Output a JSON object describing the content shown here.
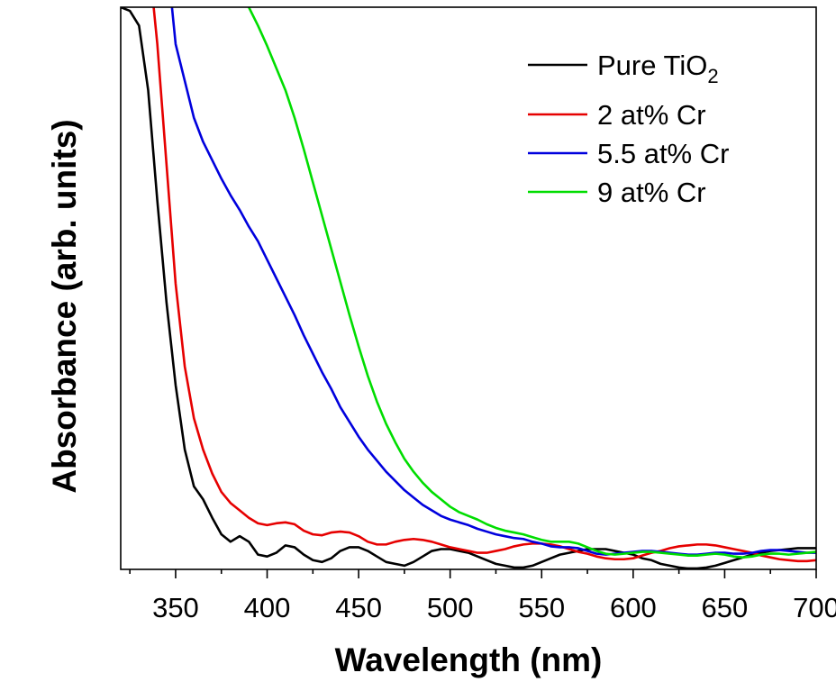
{
  "chart_data": {
    "type": "line",
    "xlabel": "Wavelength (nm)",
    "ylabel": "Absorbance (arb. units)",
    "xlim": [
      320,
      700
    ],
    "ylim": [
      0,
      3.05
    ],
    "x_ticks": [
      350,
      400,
      450,
      500,
      550,
      600,
      650,
      700
    ],
    "x_tick_labels": [
      "350",
      "400",
      "450",
      "500",
      "550",
      "600",
      "650",
      "700"
    ],
    "y_ticks_shown": false,
    "grid": false,
    "legend_position": "top-right",
    "series": [
      {
        "name": "Pure TiO2",
        "legend_main": "Pure TiO",
        "legend_sub": "2",
        "color": "#000000",
        "points": [
          [
            320,
            3.05
          ],
          [
            325,
            3.03
          ],
          [
            330,
            2.95
          ],
          [
            335,
            2.6
          ],
          [
            340,
            2.0
          ],
          [
            345,
            1.45
          ],
          [
            350,
            1.0
          ],
          [
            355,
            0.65
          ],
          [
            360,
            0.45
          ],
          [
            365,
            0.38
          ],
          [
            370,
            0.28
          ],
          [
            375,
            0.19
          ],
          [
            380,
            0.15
          ],
          [
            385,
            0.18
          ],
          [
            390,
            0.15
          ],
          [
            395,
            0.08
          ],
          [
            400,
            0.07
          ],
          [
            405,
            0.09
          ],
          [
            410,
            0.13
          ],
          [
            415,
            0.12
          ],
          [
            420,
            0.08
          ],
          [
            425,
            0.05
          ],
          [
            430,
            0.04
          ],
          [
            435,
            0.06
          ],
          [
            440,
            0.1
          ],
          [
            445,
            0.12
          ],
          [
            450,
            0.12
          ],
          [
            455,
            0.1
          ],
          [
            460,
            0.07
          ],
          [
            465,
            0.04
          ],
          [
            470,
            0.03
          ],
          [
            475,
            0.02
          ],
          [
            480,
            0.04
          ],
          [
            485,
            0.07
          ],
          [
            490,
            0.1
          ],
          [
            495,
            0.11
          ],
          [
            500,
            0.11
          ],
          [
            505,
            0.1
          ],
          [
            510,
            0.09
          ],
          [
            515,
            0.07
          ],
          [
            520,
            0.05
          ],
          [
            525,
            0.03
          ],
          [
            530,
            0.02
          ],
          [
            535,
            0.01
          ],
          [
            540,
            0.01
          ],
          [
            545,
            0.02
          ],
          [
            550,
            0.04
          ],
          [
            555,
            0.06
          ],
          [
            560,
            0.08
          ],
          [
            565,
            0.09
          ],
          [
            570,
            0.1
          ],
          [
            575,
            0.11
          ],
          [
            580,
            0.11
          ],
          [
            585,
            0.11
          ],
          [
            590,
            0.1
          ],
          [
            595,
            0.09
          ],
          [
            600,
            0.08
          ],
          [
            605,
            0.06
          ],
          [
            610,
            0.05
          ],
          [
            615,
            0.03
          ],
          [
            620,
            0.02
          ],
          [
            625,
            0.01
          ],
          [
            630,
            0.005
          ],
          [
            635,
            0.005
          ],
          [
            640,
            0.01
          ],
          [
            645,
            0.02
          ],
          [
            650,
            0.035
          ],
          [
            655,
            0.05
          ],
          [
            660,
            0.065
          ],
          [
            665,
            0.08
          ],
          [
            670,
            0.09
          ],
          [
            675,
            0.1
          ],
          [
            680,
            0.105
          ],
          [
            685,
            0.11
          ],
          [
            690,
            0.115
          ],
          [
            695,
            0.115
          ],
          [
            700,
            0.115
          ]
        ]
      },
      {
        "name": "2 at% Cr",
        "color": "#e60000",
        "points": [
          [
            338,
            3.05
          ],
          [
            340,
            2.85
          ],
          [
            345,
            2.2
          ],
          [
            350,
            1.55
          ],
          [
            355,
            1.1
          ],
          [
            360,
            0.82
          ],
          [
            365,
            0.65
          ],
          [
            370,
            0.52
          ],
          [
            375,
            0.42
          ],
          [
            380,
            0.36
          ],
          [
            385,
            0.32
          ],
          [
            390,
            0.28
          ],
          [
            395,
            0.25
          ],
          [
            400,
            0.24
          ],
          [
            405,
            0.25
          ],
          [
            410,
            0.255
          ],
          [
            415,
            0.245
          ],
          [
            420,
            0.21
          ],
          [
            425,
            0.19
          ],
          [
            430,
            0.185
          ],
          [
            435,
            0.2
          ],
          [
            440,
            0.205
          ],
          [
            445,
            0.2
          ],
          [
            450,
            0.18
          ],
          [
            455,
            0.15
          ],
          [
            460,
            0.135
          ],
          [
            465,
            0.135
          ],
          [
            470,
            0.15
          ],
          [
            475,
            0.16
          ],
          [
            480,
            0.165
          ],
          [
            485,
            0.16
          ],
          [
            490,
            0.15
          ],
          [
            495,
            0.135
          ],
          [
            500,
            0.12
          ],
          [
            505,
            0.11
          ],
          [
            510,
            0.1
          ],
          [
            515,
            0.09
          ],
          [
            520,
            0.09
          ],
          [
            525,
            0.1
          ],
          [
            530,
            0.11
          ],
          [
            535,
            0.125
          ],
          [
            540,
            0.135
          ],
          [
            545,
            0.14
          ],
          [
            550,
            0.14
          ],
          [
            555,
            0.135
          ],
          [
            560,
            0.125
          ],
          [
            565,
            0.11
          ],
          [
            570,
            0.095
          ],
          [
            575,
            0.085
          ],
          [
            580,
            0.07
          ],
          [
            585,
            0.06
          ],
          [
            590,
            0.055
          ],
          [
            595,
            0.055
          ],
          [
            600,
            0.06
          ],
          [
            605,
            0.075
          ],
          [
            610,
            0.09
          ],
          [
            615,
            0.1
          ],
          [
            620,
            0.115
          ],
          [
            625,
            0.125
          ],
          [
            630,
            0.13
          ],
          [
            635,
            0.135
          ],
          [
            640,
            0.135
          ],
          [
            645,
            0.13
          ],
          [
            650,
            0.12
          ],
          [
            655,
            0.11
          ],
          [
            660,
            0.1
          ],
          [
            665,
            0.09
          ],
          [
            670,
            0.075
          ],
          [
            675,
            0.065
          ],
          [
            680,
            0.055
          ],
          [
            685,
            0.05
          ],
          [
            690,
            0.045
          ],
          [
            695,
            0.045
          ],
          [
            700,
            0.05
          ]
        ]
      },
      {
        "name": "5.5 at% Cr",
        "color": "#0000dd",
        "points": [
          [
            348,
            3.05
          ],
          [
            350,
            2.85
          ],
          [
            355,
            2.65
          ],
          [
            360,
            2.45
          ],
          [
            365,
            2.32
          ],
          [
            370,
            2.22
          ],
          [
            375,
            2.12
          ],
          [
            380,
            2.03
          ],
          [
            385,
            1.95
          ],
          [
            390,
            1.86
          ],
          [
            395,
            1.78
          ],
          [
            400,
            1.68
          ],
          [
            405,
            1.58
          ],
          [
            410,
            1.48
          ],
          [
            415,
            1.38
          ],
          [
            420,
            1.27
          ],
          [
            425,
            1.17
          ],
          [
            430,
            1.07
          ],
          [
            435,
            0.98
          ],
          [
            440,
            0.88
          ],
          [
            445,
            0.8
          ],
          [
            450,
            0.72
          ],
          [
            455,
            0.65
          ],
          [
            460,
            0.59
          ],
          [
            465,
            0.53
          ],
          [
            470,
            0.48
          ],
          [
            475,
            0.43
          ],
          [
            480,
            0.39
          ],
          [
            485,
            0.35
          ],
          [
            490,
            0.32
          ],
          [
            495,
            0.29
          ],
          [
            500,
            0.27
          ],
          [
            505,
            0.255
          ],
          [
            510,
            0.24
          ],
          [
            515,
            0.22
          ],
          [
            520,
            0.205
          ],
          [
            525,
            0.19
          ],
          [
            530,
            0.18
          ],
          [
            535,
            0.17
          ],
          [
            540,
            0.165
          ],
          [
            545,
            0.15
          ],
          [
            550,
            0.14
          ],
          [
            555,
            0.125
          ],
          [
            560,
            0.12
          ],
          [
            565,
            0.12
          ],
          [
            570,
            0.115
          ],
          [
            575,
            0.1
          ],
          [
            580,
            0.085
          ],
          [
            585,
            0.08
          ],
          [
            590,
            0.085
          ],
          [
            595,
            0.09
          ],
          [
            600,
            0.095
          ],
          [
            605,
            0.1
          ],
          [
            610,
            0.1
          ],
          [
            615,
            0.095
          ],
          [
            620,
            0.09
          ],
          [
            625,
            0.085
          ],
          [
            630,
            0.08
          ],
          [
            635,
            0.08
          ],
          [
            640,
            0.085
          ],
          [
            645,
            0.09
          ],
          [
            650,
            0.09
          ],
          [
            655,
            0.085
          ],
          [
            660,
            0.085
          ],
          [
            665,
            0.09
          ],
          [
            670,
            0.1
          ],
          [
            675,
            0.105
          ],
          [
            680,
            0.105
          ],
          [
            685,
            0.1
          ],
          [
            690,
            0.095
          ],
          [
            695,
            0.09
          ],
          [
            700,
            0.09
          ]
        ]
      },
      {
        "name": "9 at% Cr",
        "color": "#00dd00",
        "points": [
          [
            390,
            3.05
          ],
          [
            395,
            2.95
          ],
          [
            400,
            2.84
          ],
          [
            405,
            2.72
          ],
          [
            410,
            2.6
          ],
          [
            415,
            2.45
          ],
          [
            420,
            2.28
          ],
          [
            425,
            2.1
          ],
          [
            430,
            1.92
          ],
          [
            435,
            1.74
          ],
          [
            440,
            1.56
          ],
          [
            445,
            1.38
          ],
          [
            450,
            1.21
          ],
          [
            455,
            1.05
          ],
          [
            460,
            0.91
          ],
          [
            465,
            0.79
          ],
          [
            470,
            0.69
          ],
          [
            475,
            0.6
          ],
          [
            480,
            0.53
          ],
          [
            485,
            0.47
          ],
          [
            490,
            0.42
          ],
          [
            495,
            0.38
          ],
          [
            500,
            0.34
          ],
          [
            505,
            0.31
          ],
          [
            510,
            0.29
          ],
          [
            515,
            0.27
          ],
          [
            520,
            0.245
          ],
          [
            525,
            0.225
          ],
          [
            530,
            0.21
          ],
          [
            535,
            0.2
          ],
          [
            540,
            0.19
          ],
          [
            545,
            0.175
          ],
          [
            550,
            0.16
          ],
          [
            555,
            0.15
          ],
          [
            560,
            0.15
          ],
          [
            565,
            0.15
          ],
          [
            570,
            0.14
          ],
          [
            575,
            0.12
          ],
          [
            580,
            0.1
          ],
          [
            585,
            0.085
          ],
          [
            590,
            0.08
          ],
          [
            595,
            0.085
          ],
          [
            600,
            0.09
          ],
          [
            605,
            0.095
          ],
          [
            610,
            0.095
          ],
          [
            615,
            0.09
          ],
          [
            620,
            0.085
          ],
          [
            625,
            0.08
          ],
          [
            630,
            0.075
          ],
          [
            635,
            0.075
          ],
          [
            640,
            0.08
          ],
          [
            645,
            0.085
          ],
          [
            650,
            0.08
          ],
          [
            655,
            0.07
          ],
          [
            660,
            0.065
          ],
          [
            665,
            0.07
          ],
          [
            670,
            0.08
          ],
          [
            675,
            0.085
          ],
          [
            680,
            0.085
          ],
          [
            685,
            0.08
          ],
          [
            690,
            0.085
          ],
          [
            695,
            0.09
          ],
          [
            700,
            0.095
          ]
        ]
      }
    ]
  }
}
